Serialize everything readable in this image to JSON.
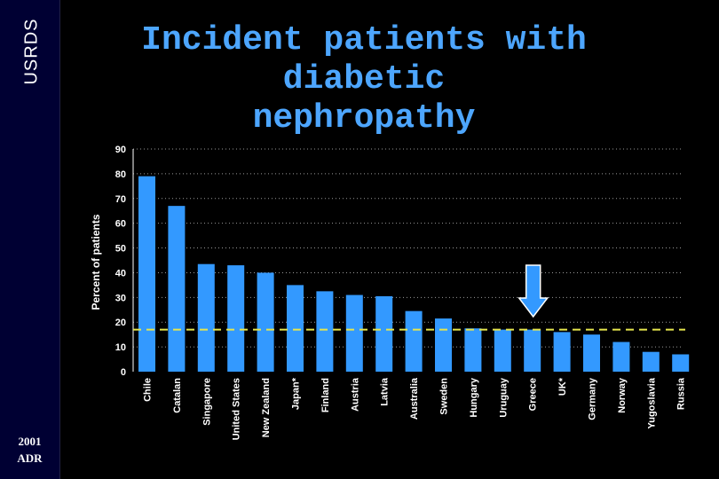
{
  "sidebar": {
    "brand": "USRDS",
    "year": "2001",
    "report": "ADR"
  },
  "chart_data": {
    "type": "bar",
    "title_lines": [
      "Incident patients with diabetic",
      "nephropathy"
    ],
    "xlabel": "",
    "ylabel": "Percent of patients",
    "ylim": [
      0,
      90
    ],
    "yticks": [
      0,
      10,
      20,
      30,
      40,
      50,
      60,
      70,
      80,
      90
    ],
    "categories": [
      "Chile",
      "Catalan",
      "Singapore",
      "United States",
      "New Zealand",
      "Japan*",
      "Finland",
      "Austria",
      "Latvia",
      "Australia",
      "Sweden",
      "Hungary",
      "Uruguay",
      "Greece",
      "UK*",
      "Germany",
      "Norway",
      "Yugoslavia",
      "Russia"
    ],
    "values": [
      79,
      67,
      43.5,
      43,
      40,
      35,
      32.5,
      31,
      30.5,
      24.5,
      21.5,
      17.5,
      17,
      17,
      16,
      15,
      12,
      8,
      7
    ],
    "reference_line": {
      "value": 17,
      "style": "dashed"
    },
    "highlight": {
      "category": "Greece",
      "marker": "arrow"
    },
    "colors": {
      "bar": "#3399ff",
      "reference_line": "#e6e64d",
      "arrow": "#3399ff",
      "arrow_outline": "#ffffff",
      "axis": "#ffffff",
      "gridline": "#999999",
      "title": "#4da6ff"
    }
  }
}
